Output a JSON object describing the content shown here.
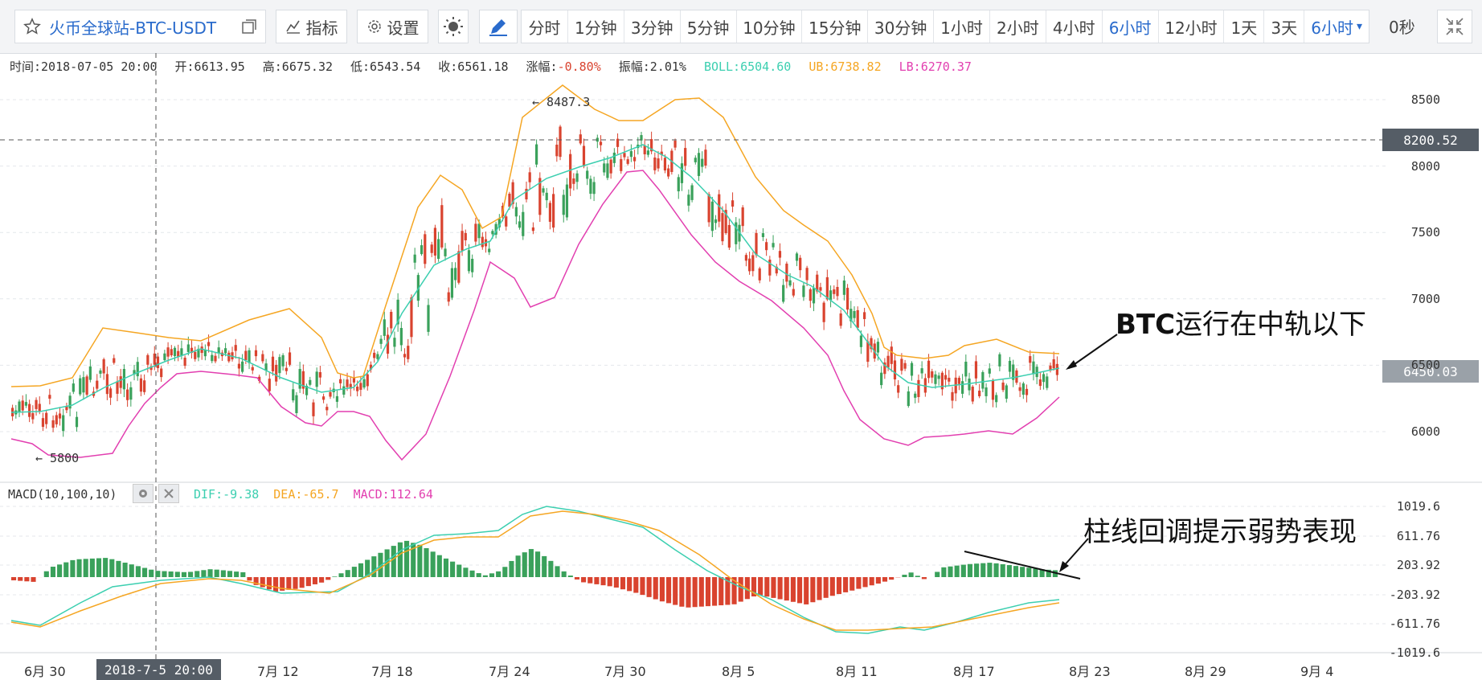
{
  "toolbar": {
    "symbol": "火币全球站-BTC-USDT",
    "indicators_label": "指标",
    "settings_label": "设置",
    "periods": [
      "分时",
      "1分钟",
      "3分钟",
      "5分钟",
      "10分钟",
      "15分钟",
      "30分钟",
      "1小时",
      "2小时",
      "4小时",
      "6小时",
      "12小时",
      "1天",
      "3天",
      "6小时"
    ],
    "active_period": "6小时",
    "timer": "0秒"
  },
  "info": {
    "time": "时间:2018-07-05 20:00",
    "open": "开:6613.95",
    "high": "高:6675.32",
    "low": "低:6543.54",
    "close": "收:6561.18",
    "change": "涨幅:",
    "change_val": "-0.80%",
    "amplitude": "振幅:2.01%",
    "boll": "BOLL:6504.60",
    "ub": "UB:6738.82",
    "lb": "LB:6270.37"
  },
  "macd_info": {
    "label": "MACD(10,100,10)",
    "dif": "DIF:-9.38",
    "dea": "DEA:-65.7",
    "macd": "MACD:112.64"
  },
  "price_tags": {
    "current": "6450.03",
    "crosshair": "8200.52"
  },
  "peak_labels": {
    "high": "← 8487.3",
    "low": "← 5800"
  },
  "y_axis_main": [
    "8500",
    "8000",
    "7500",
    "7000",
    "6500",
    "6000"
  ],
  "y_axis_macd": [
    "1019.6",
    "611.76",
    "203.92",
    "-203.92",
    "-611.76",
    "-1019.6"
  ],
  "x_axis": [
    "6月 30",
    "7月 12",
    "7月 18",
    "7月 24",
    "7月 30",
    "8月 5",
    "8月 11",
    "8月 17",
    "8月 23",
    "8月 29",
    "9月 4"
  ],
  "x_highlight": "2018-7-5 20:00",
  "annotations": {
    "boll": {
      "bold": "BTC",
      "rest": "运行在中轨以下"
    },
    "macd": "柱线回调提示弱势表现"
  },
  "colors": {
    "up": "#3aa15b",
    "down": "#d9432f",
    "boll_mid": "#3ccfb0",
    "boll_up": "#f5a623",
    "boll_low": "#e23fb0",
    "dif": "#3ccfb0",
    "dea": "#f5a623",
    "macd": "#e23fb0",
    "active": "#2a6bcc",
    "negative": "#d9432f"
  }
}
